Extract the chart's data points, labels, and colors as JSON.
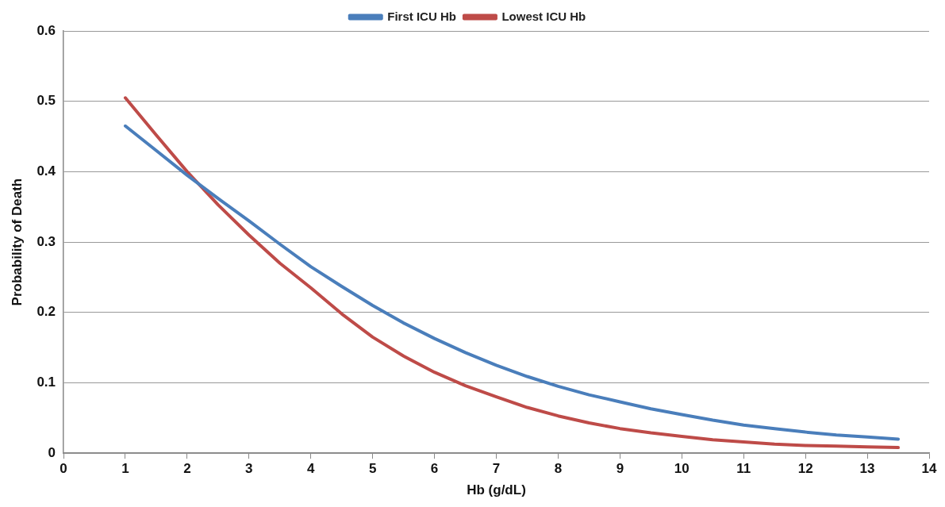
{
  "chart_data": {
    "type": "line",
    "xlabel": "Hb (g/dL)",
    "ylabel": "Probability of Death",
    "x": [
      1,
      1.5,
      2,
      2.5,
      3,
      3.5,
      4,
      4.5,
      5,
      5.5,
      6,
      6.5,
      7,
      7.5,
      8,
      8.5,
      9,
      9.5,
      10,
      10.5,
      11,
      11.5,
      12,
      12.5,
      13,
      13.5
    ],
    "series": [
      {
        "name": "First ICU Hb",
        "color": "#4a7ebb",
        "values": [
          0.465,
          0.43,
          0.395,
          0.362,
          0.33,
          0.297,
          0.265,
          0.237,
          0.21,
          0.185,
          0.163,
          0.143,
          0.125,
          0.109,
          0.095,
          0.083,
          0.073,
          0.063,
          0.055,
          0.047,
          0.04,
          0.035,
          0.03,
          0.026,
          0.023,
          0.02
        ]
      },
      {
        "name": "Lowest ICU Hb",
        "color": "#be4b48",
        "values": [
          0.505,
          0.452,
          0.4,
          0.353,
          0.31,
          0.27,
          0.235,
          0.198,
          0.165,
          0.138,
          0.115,
          0.096,
          0.08,
          0.065,
          0.053,
          0.043,
          0.035,
          0.029,
          0.024,
          0.019,
          0.016,
          0.013,
          0.011,
          0.01,
          0.009,
          0.008
        ]
      }
    ],
    "xlim": [
      0,
      14
    ],
    "xticks": [
      0,
      1,
      2,
      3,
      4,
      5,
      6,
      7,
      8,
      9,
      10,
      11,
      12,
      13,
      14
    ],
    "ylim": [
      0,
      0.6
    ],
    "yticks": [
      0,
      0.1,
      0.2,
      0.3,
      0.4,
      0.5,
      0.6
    ],
    "grid": "y",
    "legend": "top",
    "marker": "none",
    "line_style": "solid"
  }
}
